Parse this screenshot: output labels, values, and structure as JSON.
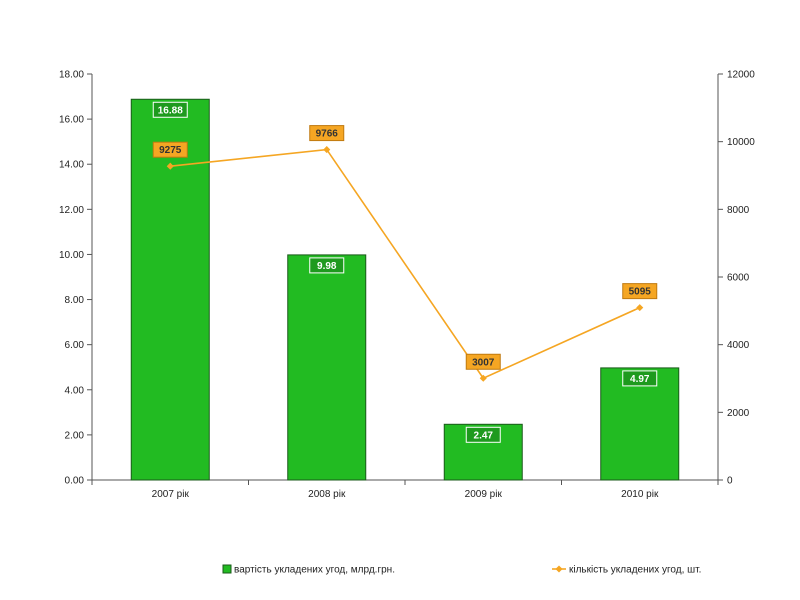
{
  "chart_data": {
    "type": "bar",
    "categories": [
      "2007 рік",
      "2008 рік",
      "2009 рік",
      "2010 рік"
    ],
    "series": [
      {
        "name": "вартість укладених угод, млрд.грн.",
        "type": "bar",
        "axis": "left",
        "values": [
          16.88,
          9.98,
          2.47,
          4.97
        ],
        "labels": [
          "16.88",
          "9.98",
          "2.47",
          "4.97"
        ],
        "color": "#22bb22"
      },
      {
        "name": "кількість укладених угод, шт.",
        "type": "line",
        "axis": "right",
        "values": [
          9275,
          9766,
          3007,
          5095
        ],
        "labels": [
          "9275",
          "9766",
          "3007",
          "5095"
        ],
        "color": "#f5a623"
      }
    ],
    "y_left": {
      "lim": [
        0,
        18
      ],
      "ticks": [
        0,
        2,
        4,
        6,
        8,
        10,
        12,
        14,
        16,
        18
      ],
      "tick_labels": [
        "0.00",
        "2.00",
        "4.00",
        "6.00",
        "8.00",
        "10.00",
        "12.00",
        "14.00",
        "16.00",
        "18.00"
      ]
    },
    "y_right": {
      "lim": [
        0,
        12000
      ],
      "ticks": [
        0,
        2000,
        4000,
        6000,
        8000,
        10000,
        12000
      ],
      "tick_labels": [
        "0",
        "2000",
        "4000",
        "6000",
        "8000",
        "10000",
        "12000"
      ]
    },
    "grid": false,
    "legend": "bottom"
  }
}
